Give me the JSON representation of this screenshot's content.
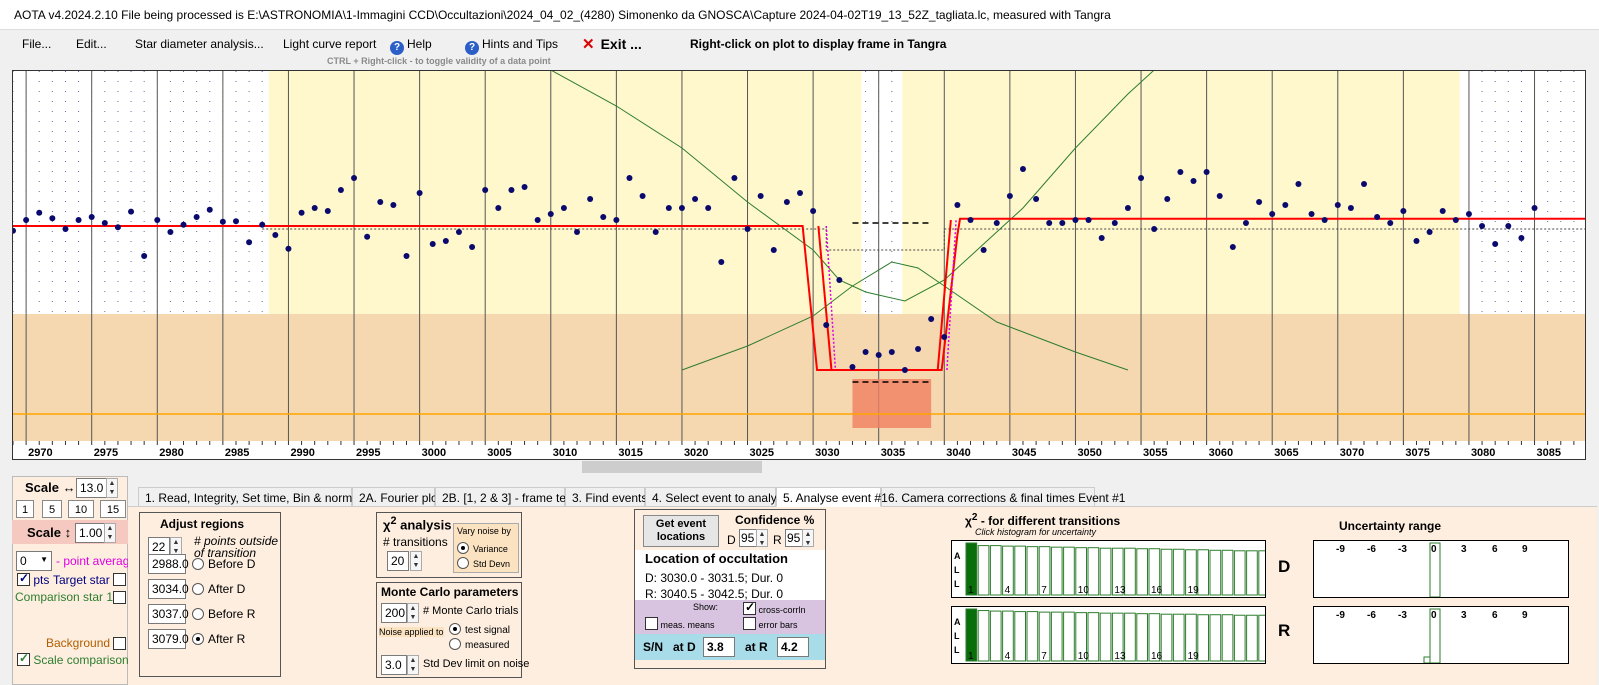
{
  "window": {
    "title": "AOTA v4.2024.2.10    File being processed is E:\\ASTRONOMIA\\1-Immagini CCD\\Occultazioni\\2024_04_02_(4280) Simonenko da GNOSCA\\Capture 2024-04-02T19_13_52Z_tagliata.lc, measured with Tangra"
  },
  "menu": {
    "file": "File...",
    "edit": "Edit...",
    "star_diameter": "Star diameter analysis...",
    "light_curve": "Light curve report",
    "help": "Help",
    "hints": "Hints and Tips",
    "exit": "Exit ...",
    "right_click_hint": "Right-click on plot to display frame in Tangra",
    "ctrl_hint": "CTRL + Right-click  -  to toggle validity of a data point",
    "help_icon": "question-icon",
    "exit_icon": "close-icon"
  },
  "chart_data": {
    "type": "scatter",
    "xlim": [
      2969,
      3089
    ],
    "xticks": [
      2970,
      2975,
      2980,
      2985,
      2990,
      2995,
      3000,
      3005,
      3010,
      3015,
      3020,
      3025,
      3030,
      3035,
      3040,
      3045,
      3050,
      3055,
      3060,
      3065,
      3070,
      3075,
      3080,
      3085
    ],
    "grid": true,
    "colors": {
      "points": "#0a0a6e",
      "model": "#ff0000",
      "comparison": "#2e7d2e",
      "background": "#ffa500",
      "region_yellow": "#fff8cc",
      "region_tan": "#f5d8b0",
      "event_fill": "#f08060"
    },
    "target": [
      [
        2969,
        -0.08
      ],
      [
        2970,
        0.1
      ],
      [
        2971,
        0.22
      ],
      [
        2972,
        0.13
      ],
      [
        2973,
        -0.05
      ],
      [
        2974,
        0.1
      ],
      [
        2975,
        0.15
      ],
      [
        2976,
        0.05
      ],
      [
        2977,
        -0.02
      ],
      [
        2978,
        0.24
      ],
      [
        2979,
        -0.5
      ],
      [
        2980,
        0.1
      ],
      [
        2981,
        -0.1
      ],
      [
        2982,
        0.02
      ],
      [
        2983,
        0.15
      ],
      [
        2984,
        0.27
      ],
      [
        2985,
        0.07
      ],
      [
        2986,
        0.08
      ],
      [
        2987,
        -0.27
      ],
      [
        2988,
        0.02
      ],
      [
        2989,
        -0.15
      ],
      [
        2990,
        -0.38
      ],
      [
        2991,
        0.22
      ],
      [
        2992,
        0.3
      ],
      [
        2993,
        0.25
      ],
      [
        2994,
        0.6
      ],
      [
        2995,
        0.8
      ],
      [
        2996,
        -0.18
      ],
      [
        2997,
        0.4
      ],
      [
        2998,
        0.35
      ],
      [
        2999,
        -0.5
      ],
      [
        3000,
        0.55
      ],
      [
        3001,
        -0.3
      ],
      [
        3002,
        -0.25
      ],
      [
        3003,
        -0.1
      ],
      [
        3004,
        -0.35
      ],
      [
        3005,
        0.6
      ],
      [
        3006,
        0.3
      ],
      [
        3007,
        0.6
      ],
      [
        3008,
        0.65
      ],
      [
        3009,
        0.1
      ],
      [
        3010,
        0.2
      ],
      [
        3011,
        0.3
      ],
      [
        3012,
        -0.1
      ],
      [
        3013,
        0.45
      ],
      [
        3014,
        0.15
      ],
      [
        3015,
        0.1
      ],
      [
        3016,
        0.8
      ],
      [
        3017,
        0.5
      ],
      [
        3018,
        -0.1
      ],
      [
        3019,
        0.3
      ],
      [
        3020,
        0.3
      ],
      [
        3021,
        0.45
      ],
      [
        3022,
        0.3
      ],
      [
        3023,
        -0.6
      ],
      [
        3024,
        0.8
      ],
      [
        3025,
        -0.05
      ],
      [
        3026,
        0.5
      ],
      [
        3027,
        -0.4
      ],
      [
        3028,
        0.4
      ],
      [
        3029,
        0.55
      ],
      [
        3030,
        0.25
      ],
      [
        3031,
        -1.65
      ],
      [
        3032,
        -0.9
      ],
      [
        3033,
        -2.35
      ],
      [
        3034,
        -2.1
      ],
      [
        3035,
        -2.15
      ],
      [
        3036,
        -2.1
      ],
      [
        3037,
        -2.4
      ],
      [
        3038,
        -2.05
      ],
      [
        3039,
        -1.55
      ],
      [
        3040,
        -1.85
      ],
      [
        3041,
        0.35
      ],
      [
        3042,
        0.1
      ],
      [
        3043,
        -0.4
      ],
      [
        3044,
        0.05
      ],
      [
        3045,
        0.5
      ],
      [
        3046,
        0.95
      ],
      [
        3047,
        0.45
      ],
      [
        3048,
        0.05
      ],
      [
        3049,
        0.05
      ],
      [
        3050,
        0.1
      ],
      [
        3051,
        0.1
      ],
      [
        3052,
        -0.2
      ],
      [
        3053,
        0.05
      ],
      [
        3054,
        0.3
      ],
      [
        3055,
        0.8
      ],
      [
        3056,
        -0.05
      ],
      [
        3057,
        0.45
      ],
      [
        3058,
        0.9
      ],
      [
        3059,
        0.75
      ],
      [
        3060,
        0.9
      ],
      [
        3061,
        0.5
      ],
      [
        3062,
        -0.35
      ],
      [
        3063,
        0.05
      ],
      [
        3064,
        0.4
      ],
      [
        3065,
        0.2
      ],
      [
        3066,
        0.35
      ],
      [
        3067,
        0.7
      ],
      [
        3068,
        0.2
      ],
      [
        3069,
        0.1
      ],
      [
        3070,
        0.35
      ],
      [
        3071,
        0.3
      ],
      [
        3072,
        0.7
      ],
      [
        3073,
        0.15
      ],
      [
        3074,
        0.05
      ],
      [
        3075,
        0.25
      ],
      [
        3076,
        -0.25
      ],
      [
        3077,
        -0.1
      ],
      [
        3078,
        0.25
      ],
      [
        3079,
        0.1
      ],
      [
        3080,
        0.2
      ],
      [
        3081,
        0.0
      ],
      [
        3082,
        -0.3
      ],
      [
        3083,
        0.0
      ],
      [
        3084,
        -0.2
      ],
      [
        3085,
        0.3
      ]
    ],
    "model": [
      [
        2969,
        0
      ],
      [
        3030.0,
        0
      ],
      [
        3031.5,
        -1.55
      ],
      [
        3039.5,
        -1.55
      ],
      [
        3041.0,
        0
      ],
      [
        3089,
        0
      ]
    ],
    "comparison": [
      [
        2969,
        -1.45
      ],
      [
        2980,
        -1.55
      ],
      [
        2990,
        -1.55
      ],
      [
        2997,
        -1.65
      ],
      [
        3003,
        -1.5
      ],
      [
        3007,
        -1.75
      ],
      [
        3015,
        -1.85
      ],
      [
        3020,
        -1.75
      ],
      [
        3025,
        -1.7
      ],
      [
        3030,
        -1.65
      ],
      [
        3035,
        -1.5
      ],
      [
        3040,
        -1.55
      ],
      [
        3045,
        -1.7
      ],
      [
        3050,
        -1.85
      ],
      [
        3055,
        -1.85
      ],
      [
        3060,
        -1.75
      ],
      [
        3065,
        -1.7
      ],
      [
        3070,
        -1.65
      ],
      [
        3075,
        -1.6
      ],
      [
        3080,
        -1.55
      ],
      [
        3085,
        -1.5
      ],
      [
        3089,
        -1.55
      ]
    ],
    "background_level": -1.55
  },
  "scale": {
    "h_label": "Scale ↔",
    "h_value": "13.0",
    "v_label": "Scale ↕",
    "v_value": "1.00",
    "buttons": [
      "1",
      "5",
      "10",
      "15"
    ],
    "point_avg_value": "0",
    "point_avg_label": "- point average",
    "pts_label": "pts",
    "target_label": "Target star",
    "comparison_label": "Comparison star 1",
    "background_label": "Background",
    "scale_comparisons": "Scale comparisons"
  },
  "tabs": [
    "1.  Read, Integrity, Set time, Bin & normalise",
    "2A. Fourier plot",
    "2B. [1, 2 & 3] - frame test",
    "3. Find events",
    "4. Select event to analyse",
    "5. Analyse event #1",
    "6. Camera corrections & final times Event #1"
  ],
  "adjust": {
    "title": "Adjust regions",
    "n_value": "22",
    "n_label": "# points outside of transition",
    "rows": [
      {
        "value": "2988.0",
        "label": "Before D"
      },
      {
        "value": "3034.0",
        "label": "After D"
      },
      {
        "value": "3037.0",
        "label": "Before R"
      },
      {
        "value": "3079.0",
        "label": "After R"
      }
    ]
  },
  "chi2": {
    "title": "χ",
    "sup": "2",
    "title_rest": " analysis",
    "transitions_label": "# transitions",
    "transitions_value": "20",
    "vary_label": "Vary noise by",
    "variance": "Variance",
    "stddev": "Std Devn"
  },
  "monte": {
    "title": "Monte Carlo parameters",
    "trials_value": "200",
    "trials_label": "# Monte Carlo trials",
    "noise_applied": "Noise applied to",
    "test_signal": "test signal",
    "measured": "measured",
    "limit_value": "3.0",
    "limit_label": "Std Dev limit on noise"
  },
  "location": {
    "button": "Get event locations",
    "confidence": "Confidence %",
    "d_label": "D",
    "d_value": "95",
    "r_label": "R",
    "r_value": "95",
    "title": "Location of occultation",
    "d_line": "D: 3030.0 - 3031.5; Dur. 0",
    "r_line": "R: 3040.5 - 3042.5; Dur. 0",
    "show": "Show:",
    "cross_corr": "cross-corrln",
    "meas_means": "meas. means",
    "error_bars": "error bars",
    "sn": "S/N",
    "at_d": "at D",
    "sn_d": "3.8",
    "at_r": "at R",
    "sn_r": "4.2"
  },
  "chi2hist": {
    "title": "χ",
    "sup": "2",
    "title_rest": " - for different transitions",
    "subtitle": "Click histogram for uncertainty",
    "all": "A L L",
    "ticks": [
      "1",
      "4",
      "7",
      "10",
      "13",
      "16",
      "19"
    ],
    "d": "D",
    "r": "R",
    "values_d": [
      1,
      0.95,
      0.95,
      0.94,
      0.94,
      0.93,
      0.93,
      0.92,
      0.92,
      0.91,
      0.91,
      0.9,
      0.9,
      0.9,
      0.89,
      0.89,
      0.88,
      0.88,
      0.87,
      0.87,
      0.86,
      0.86,
      0.85,
      0.85,
      0.85
    ],
    "values_r": [
      1,
      0.97,
      0.96,
      0.96,
      0.95,
      0.95,
      0.94,
      0.94,
      0.94,
      0.93,
      0.93,
      0.92,
      0.92,
      0.92,
      0.91,
      0.91,
      0.9,
      0.9,
      0.9,
      0.89,
      0.89,
      0.89,
      0.88,
      0.88,
      0.88
    ]
  },
  "uncert": {
    "title": "Uncertainty range",
    "ticks": [
      "-9",
      "-6",
      "-3",
      "0",
      "3",
      "6",
      "9"
    ]
  }
}
